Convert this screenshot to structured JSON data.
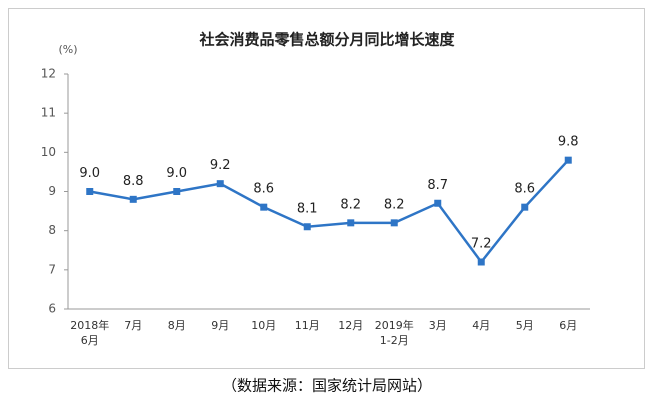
{
  "chart_data": {
    "type": "line",
    "title": "社会消费品零售总额分月同比增长速度",
    "y_unit": "(%)",
    "source": "（数据来源：国家统计局网站）",
    "categories": [
      [
        "2018年",
        "6月"
      ],
      [
        "7月"
      ],
      [
        "8月"
      ],
      [
        "9月"
      ],
      [
        "10月"
      ],
      [
        "11月"
      ],
      [
        "12月"
      ],
      [
        "2019年",
        "1-2月"
      ],
      [
        "3月"
      ],
      [
        "4月"
      ],
      [
        "5月"
      ],
      [
        "6月"
      ]
    ],
    "values": [
      9.0,
      8.8,
      9.0,
      9.2,
      8.6,
      8.1,
      8.2,
      8.2,
      8.7,
      7.2,
      8.6,
      9.8
    ],
    "value_labels": [
      "9.0",
      "8.8",
      "9.0",
      "9.2",
      "8.6",
      "8.1",
      "8.2",
      "8.2",
      "8.7",
      "7.2",
      "8.6",
      "9.8"
    ],
    "color": "#2e75c6",
    "ylim": [
      6,
      12
    ],
    "yticks": [
      6,
      7,
      8,
      9,
      10,
      11,
      12
    ],
    "grid": false
  }
}
